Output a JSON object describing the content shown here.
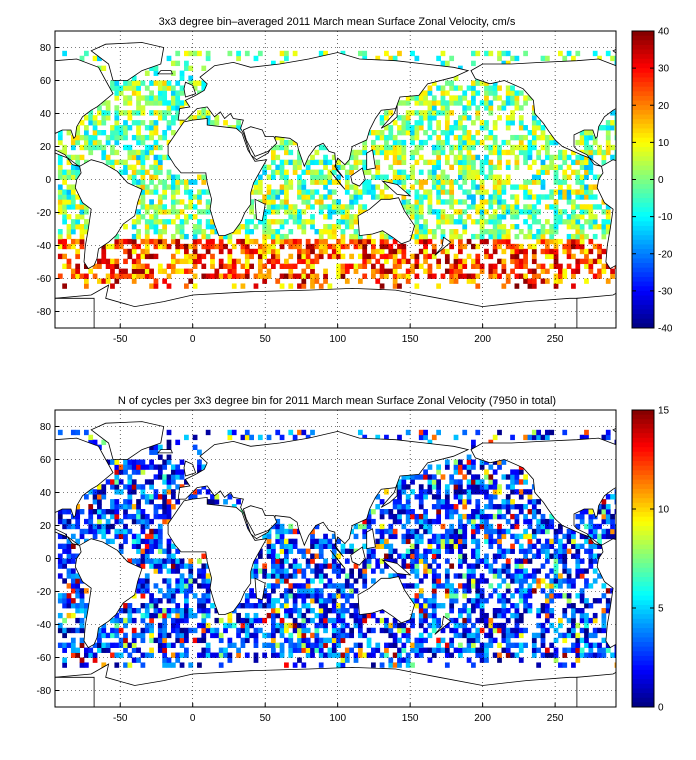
{
  "chart_data": [
    {
      "type": "heatmap",
      "title": "3x3 degree bin–averaged 2011 March mean Surface Zonal Velocity, cm/s",
      "xlim": [
        -95,
        292
      ],
      "ylim": [
        -90,
        90
      ],
      "x_ticks": [
        "-50",
        "0",
        "50",
        "100",
        "150",
        "200",
        "250"
      ],
      "y_ticks": [
        "80",
        "60",
        "40",
        "20",
        "0",
        "-20",
        "-40",
        "-60",
        "-80"
      ],
      "bin_size_deg": 3,
      "grid": "dotted",
      "colorbar": {
        "range": [
          -40,
          40
        ],
        "ticks": [
          "40",
          "30",
          "20",
          "10",
          "0",
          "-10",
          "-20",
          "-30",
          "-40"
        ],
        "colormap": "jet"
      }
    },
    {
      "type": "heatmap",
      "title": "N of cycles per 3x3 degree bin for 2011 March mean Surface Zonal Velocity (7950 in total)",
      "xlim": [
        -95,
        292
      ],
      "ylim": [
        -90,
        90
      ],
      "x_ticks": [
        "-50",
        "0",
        "50",
        "100",
        "150",
        "200",
        "250"
      ],
      "y_ticks": [
        "80",
        "60",
        "40",
        "20",
        "0",
        "-20",
        "-40",
        "-60",
        "-80"
      ],
      "bin_size_deg": 3,
      "grid": "dotted",
      "colorbar": {
        "range": [
          0,
          15
        ],
        "ticks": [
          "15",
          "10",
          "5",
          "0"
        ],
        "colormap": "jet"
      }
    }
  ]
}
